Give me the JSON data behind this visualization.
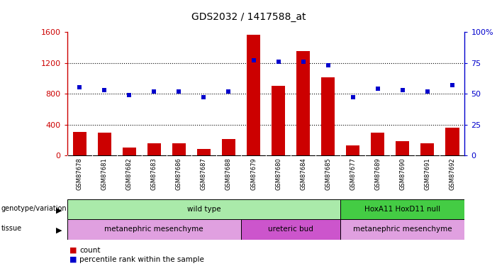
{
  "title": "GDS2032 / 1417588_at",
  "samples": [
    "GSM87678",
    "GSM87681",
    "GSM87682",
    "GSM87683",
    "GSM87686",
    "GSM87687",
    "GSM87688",
    "GSM87679",
    "GSM87680",
    "GSM87684",
    "GSM87685",
    "GSM87677",
    "GSM87689",
    "GSM87690",
    "GSM87691",
    "GSM87692"
  ],
  "bar_values": [
    310,
    295,
    100,
    155,
    155,
    90,
    210,
    1560,
    900,
    1350,
    1010,
    130,
    300,
    185,
    160,
    360
  ],
  "dot_values": [
    55,
    53,
    49,
    52,
    52,
    47,
    52,
    77,
    76,
    76,
    73,
    47,
    54,
    53,
    52,
    57
  ],
  "bar_color": "#cc0000",
  "dot_color": "#0000cc",
  "ylim_left": [
    0,
    1600
  ],
  "ylim_right": [
    0,
    100
  ],
  "yticks_left": [
    0,
    400,
    800,
    1200,
    1600
  ],
  "yticks_right": [
    0,
    25,
    50,
    75,
    100
  ],
  "ytick_labels_left": [
    "0",
    "400",
    "800",
    "1200",
    "1600"
  ],
  "ytick_labels_right": [
    "0",
    "25",
    "50",
    "75",
    "100%"
  ],
  "grid_values": [
    400,
    800,
    1200
  ],
  "genotype_groups": [
    {
      "label": "wild type",
      "start": 0,
      "end": 11,
      "color": "#aaeaaa"
    },
    {
      "label": "HoxA11 HoxD11 null",
      "start": 11,
      "end": 16,
      "color": "#44cc44"
    }
  ],
  "tissue_groups": [
    {
      "label": "metanephric mesenchyme",
      "start": 0,
      "end": 7,
      "color": "#e0a0e0"
    },
    {
      "label": "ureteric bud",
      "start": 7,
      "end": 11,
      "color": "#cc55cc"
    },
    {
      "label": "metanephric mesenchyme",
      "start": 11,
      "end": 16,
      "color": "#e0a0e0"
    }
  ],
  "bar_color_legend": "#cc0000",
  "dot_color_legend": "#0000cc",
  "bg_color": "#ffffff",
  "tick_area_color": "#cccccc",
  "right_ylabel_color": "#0000cc",
  "left_ylabel_color": "#cc0000"
}
